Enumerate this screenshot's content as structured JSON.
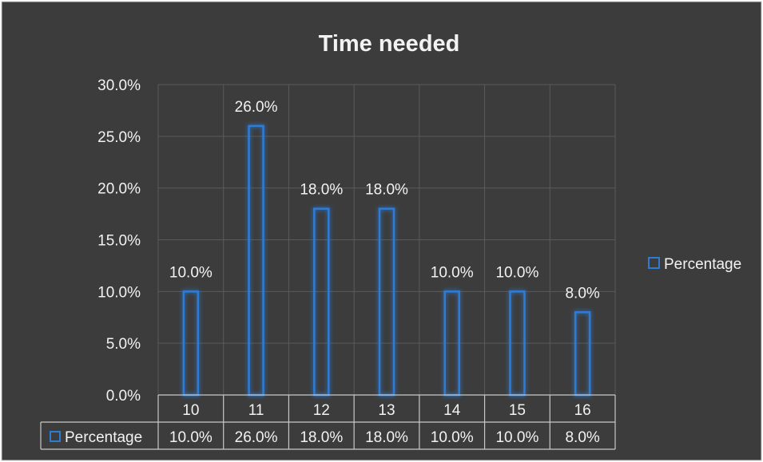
{
  "chart_data": {
    "type": "bar",
    "title": "Time needed",
    "categories": [
      "10",
      "11",
      "12",
      "13",
      "14",
      "15",
      "16"
    ],
    "series": [
      {
        "name": "Percentage",
        "values": [
          10.0,
          26.0,
          18.0,
          18.0,
          10.0,
          10.0,
          8.0
        ],
        "value_labels": [
          "10.0%",
          "26.0%",
          "18.0%",
          "18.0%",
          "10.0%",
          "10.0%",
          "8.0%"
        ]
      }
    ],
    "y_ticks": [
      "0.0%",
      "5.0%",
      "10.0%",
      "15.0%",
      "20.0%",
      "25.0%",
      "30.0%"
    ],
    "ylim": [
      0,
      30
    ],
    "grid": true,
    "legend_position": "right",
    "data_table": true,
    "colors": {
      "background": "#3c3c3c",
      "bar_outline": "#2e7bd6",
      "bar_glow": "#1f5fa8",
      "text": "#f2f2f2",
      "grid": "#5a5a5a",
      "table_border": "#c8c8c8"
    }
  }
}
